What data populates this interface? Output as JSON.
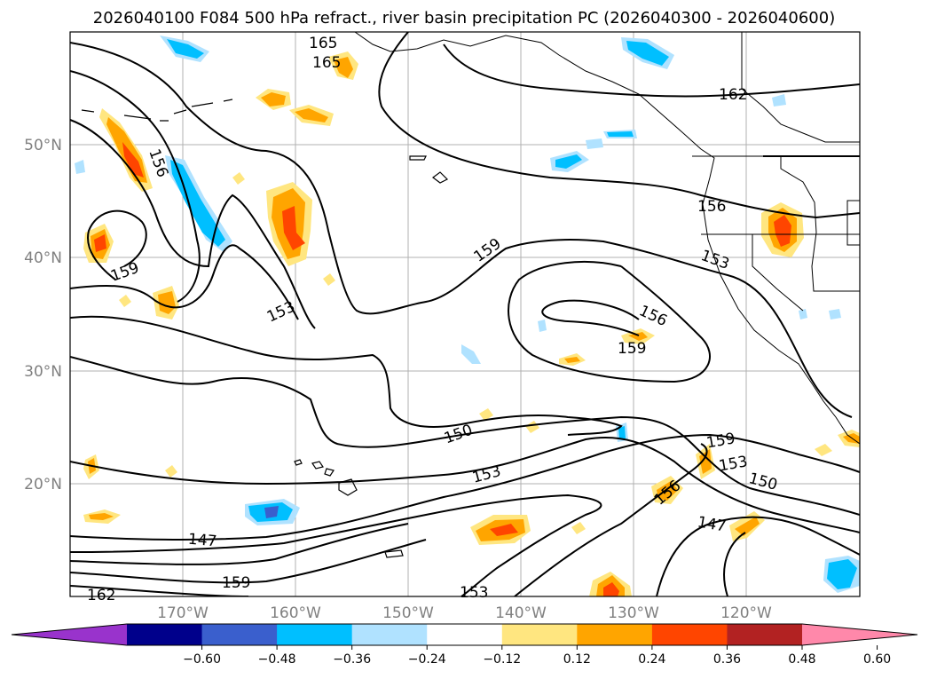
{
  "title": "2026040100 F084 500 hPa refract., river basin precipitation PC (2026040300 - 2026040600)",
  "lat_labels": [
    "50°N",
    "40°N",
    "30°N",
    "20°N"
  ],
  "lon_labels": [
    "170°W",
    "160°W",
    "150°W",
    "140°W",
    "130°W",
    "120°W"
  ],
  "colorbar": {
    "tick_labels": [
      "−0.60",
      "−0.48",
      "−0.36",
      "−0.24",
      "−0.12",
      "0.12",
      "0.24",
      "0.36",
      "0.48",
      "0.60"
    ],
    "colors": [
      "#9933cc",
      "#00008b",
      "#3a5fcd",
      "#00bfff",
      "#b0e2ff",
      "#ffffff",
      "#ffe680",
      "#ffa500",
      "#ff4500",
      "#b22222",
      "#ff88aa"
    ]
  },
  "contour_labels": [
    "165",
    "165",
    "162",
    "156",
    "156",
    "159",
    "159",
    "153",
    "153",
    "156",
    "159",
    "150",
    "159",
    "153",
    "150",
    "153",
    "156",
    "147",
    "147",
    "159",
    "162",
    "153"
  ],
  "colors": {
    "land_outline": "#000000",
    "grid": "#b0b0b0",
    "contour": "#000000"
  }
}
